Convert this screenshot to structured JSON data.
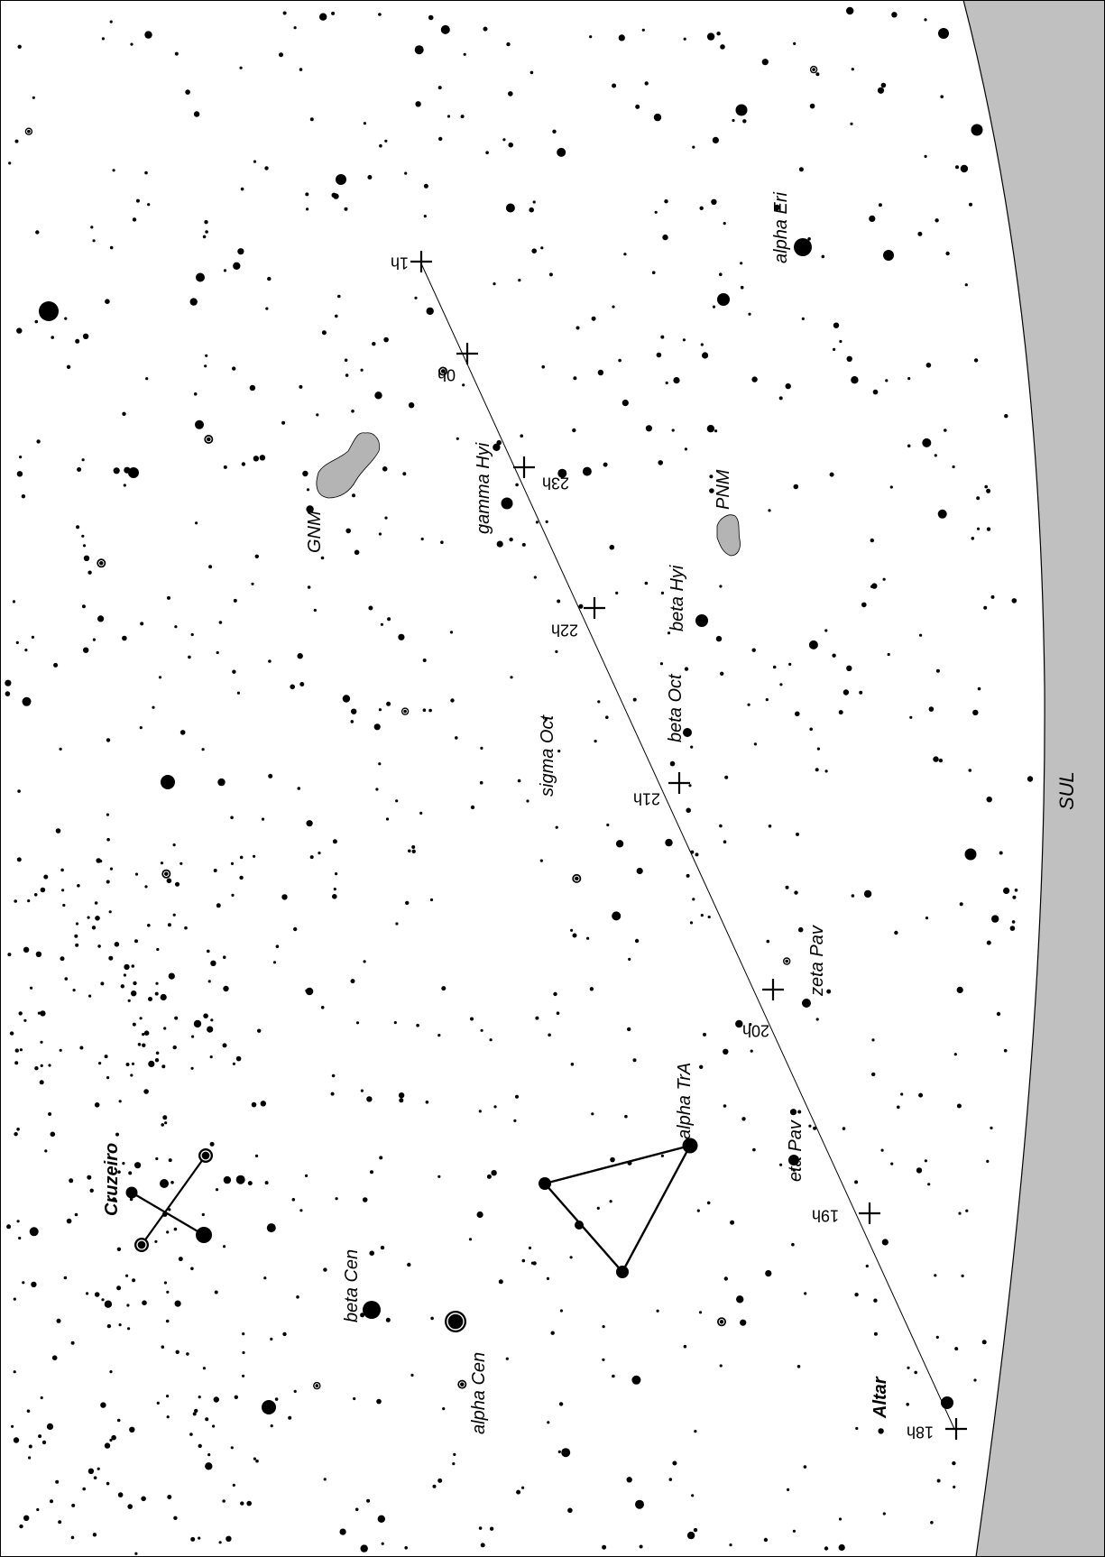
{
  "map": {
    "horizon_label": "SUL",
    "colors": {
      "sky": "#ffffff",
      "ground": "#c0c0c0",
      "ink": "#000000",
      "cloud": "#b4b4b4"
    },
    "ecliptic_marks": [
      "18h",
      "19h",
      "20h",
      "21h",
      "22h",
      "23h",
      "0h",
      "1h"
    ],
    "star_labels": [
      "alpha Eri",
      "gamma Hyi",
      "beta Hyi",
      "beta Oct",
      "sigma Oct",
      "zeta Pav",
      "eta Pav",
      "alpha TrA",
      "beta Cen",
      "alpha Cen"
    ],
    "asterism_labels": [
      "Cruzeiro",
      "Altar"
    ],
    "deep_sky_labels": [
      "GNM",
      "PNM"
    ],
    "asterisms": [
      "Cruzeiro",
      "Triangulum Australe"
    ]
  }
}
